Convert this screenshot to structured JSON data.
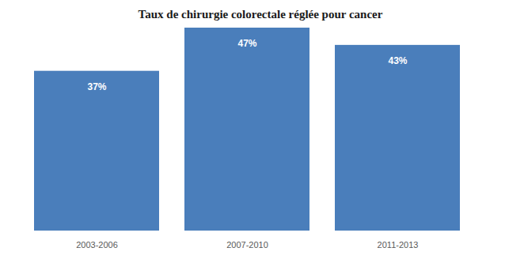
{
  "chart_data": {
    "type": "bar",
    "title": "Taux de chirurgie colorectale réglée pour cancer",
    "categories": [
      "2003-2006",
      "2007-2010",
      "2011-2013"
    ],
    "values": [
      37,
      47,
      43
    ],
    "value_labels": [
      "37%",
      "47%",
      "43%"
    ],
    "color": "#4a7ebb",
    "ylim": [
      0,
      47
    ],
    "data_labels": true,
    "tick_labels": "x",
    "grid": false
  }
}
